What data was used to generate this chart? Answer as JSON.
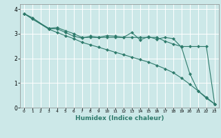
{
  "xlabel": "Humidex (Indice chaleur)",
  "bg_color": "#cce8e8",
  "grid_color": "#ffffff",
  "line_color": "#2d7a6b",
  "xlim": [
    -0.5,
    23.5
  ],
  "ylim": [
    0,
    4.2
  ],
  "xticks": [
    0,
    1,
    2,
    3,
    4,
    5,
    6,
    7,
    8,
    9,
    10,
    11,
    12,
    13,
    14,
    15,
    16,
    17,
    18,
    19,
    20,
    21,
    22,
    23
  ],
  "yticks": [
    0,
    1,
    2,
    3,
    4
  ],
  "line1_x": [
    0,
    1,
    3,
    4,
    5,
    6,
    7,
    8,
    9,
    10,
    11,
    12,
    13,
    14,
    15,
    16,
    17,
    18,
    19,
    20,
    21,
    22,
    23
  ],
  "line1_y": [
    3.82,
    3.65,
    3.2,
    3.2,
    3.05,
    2.9,
    2.82,
    2.9,
    2.85,
    2.92,
    2.9,
    2.85,
    3.05,
    2.75,
    2.88,
    2.78,
    2.85,
    2.8,
    2.45,
    1.38,
    0.68,
    0.42,
    0.15
  ],
  "line2_x": [
    0,
    1,
    3,
    4,
    5,
    6,
    7,
    8,
    9,
    10,
    11,
    12,
    13,
    14,
    15,
    16,
    17,
    18,
    19,
    20,
    21,
    22,
    23
  ],
  "line2_y": [
    3.82,
    3.6,
    3.22,
    3.25,
    3.12,
    3.0,
    2.85,
    2.85,
    2.85,
    2.85,
    2.85,
    2.85,
    2.85,
    2.85,
    2.85,
    2.85,
    2.7,
    2.58,
    2.48,
    2.48,
    2.48,
    2.48,
    0.15
  ],
  "line3_x": [
    0,
    1,
    3,
    4,
    5,
    6,
    7,
    8,
    9,
    10,
    11,
    12,
    13,
    14,
    15,
    16,
    17,
    18,
    19,
    20,
    21,
    22,
    23
  ],
  "line3_y": [
    3.82,
    3.6,
    3.18,
    3.05,
    2.92,
    2.8,
    2.65,
    2.55,
    2.45,
    2.35,
    2.25,
    2.15,
    2.05,
    1.95,
    1.85,
    1.72,
    1.58,
    1.42,
    1.2,
    0.95,
    0.68,
    0.38,
    0.15
  ]
}
